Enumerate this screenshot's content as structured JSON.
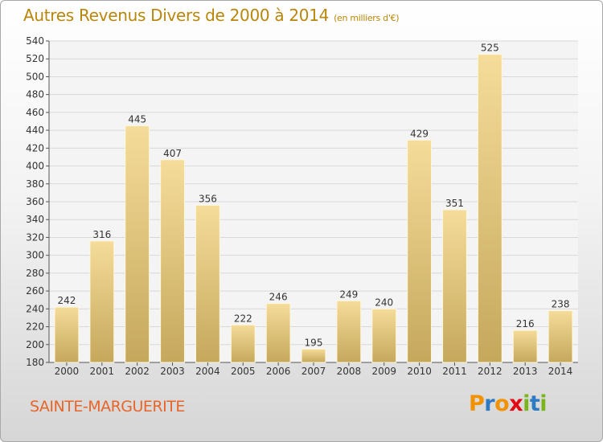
{
  "title": {
    "main": "Autres Revenus Divers de 2000 à 2014",
    "unit": "(en milliers d'€)"
  },
  "place": "SAINTE-MARGUERITE",
  "logo": {
    "letters": [
      "P",
      "r",
      "o",
      "x",
      "i",
      "t",
      "i"
    ],
    "colors": [
      "#f39200",
      "#2e7bc4",
      "#f39200",
      "#e30613",
      "#7ab51d",
      "#2e7bc4",
      "#7ab51d"
    ]
  },
  "colors": {
    "bar_light": "#f5dc9a",
    "bar_dark": "#c5a85c",
    "accent": "#b8860b"
  },
  "chart_data": {
    "type": "bar",
    "categories": [
      "2000",
      "2001",
      "2002",
      "2003",
      "2004",
      "2005",
      "2006",
      "2007",
      "2008",
      "2009",
      "2010",
      "2011",
      "2012",
      "2013",
      "2014"
    ],
    "values": [
      242,
      316,
      445,
      407,
      356,
      222,
      246,
      195,
      249,
      240,
      429,
      351,
      525,
      216,
      238
    ],
    "ylim": [
      180,
      540
    ],
    "yticks": [
      180,
      200,
      220,
      240,
      260,
      280,
      300,
      320,
      340,
      360,
      380,
      400,
      420,
      440,
      460,
      480,
      500,
      520,
      540
    ],
    "grid": true
  }
}
